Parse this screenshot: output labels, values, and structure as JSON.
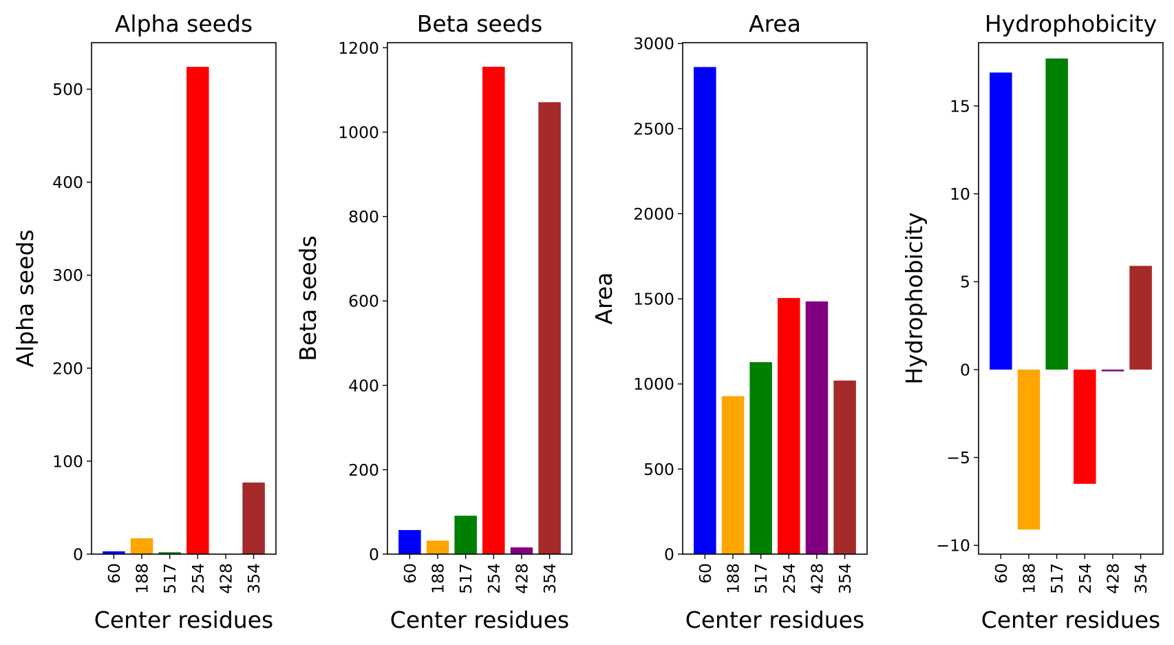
{
  "chart_data": [
    {
      "type": "bar",
      "title": "Alpha seeds",
      "xlabel": "Center residues",
      "ylabel": "Alpha seeds",
      "categories": [
        "60",
        "188",
        "517",
        "254",
        "428",
        "354"
      ],
      "values": [
        3,
        17,
        2,
        524,
        0,
        77
      ],
      "colors": [
        "#0000ff",
        "#ffa500",
        "#008000",
        "#ff0000",
        "#800080",
        "#a52a2a"
      ],
      "ylim": [
        0,
        550
      ],
      "yticks": [
        0,
        100,
        200,
        300,
        400,
        500
      ],
      "ytick_labels": [
        "0",
        "100",
        "200",
        "300",
        "400",
        "500"
      ]
    },
    {
      "type": "bar",
      "title": "Beta seeds",
      "xlabel": "Center residues",
      "ylabel": "Beta seeds",
      "categories": [
        "60",
        "188",
        "517",
        "254",
        "428",
        "354"
      ],
      "values": [
        57,
        32,
        91,
        1155,
        16,
        1071
      ],
      "colors": [
        "#0000ff",
        "#ffa500",
        "#008000",
        "#ff0000",
        "#800080",
        "#a52a2a"
      ],
      "ylim": [
        0,
        1212
      ],
      "yticks": [
        0,
        200,
        400,
        600,
        800,
        1000,
        1200
      ],
      "ytick_labels": [
        "0",
        "200",
        "400",
        "600",
        "800",
        "1000",
        "1200"
      ]
    },
    {
      "type": "bar",
      "title": "Area",
      "xlabel": "Center residues",
      "ylabel": "Area",
      "categories": [
        "60",
        "188",
        "517",
        "254",
        "428",
        "354"
      ],
      "values": [
        2862,
        928,
        1128,
        1505,
        1485,
        1020
      ],
      "colors": [
        "#0000ff",
        "#ffa500",
        "#008000",
        "#ff0000",
        "#800080",
        "#a52a2a"
      ],
      "ylim": [
        0,
        3005
      ],
      "yticks": [
        0,
        500,
        1000,
        1500,
        2000,
        2500,
        3000
      ],
      "ytick_labels": [
        "0",
        "500",
        "1000",
        "1500",
        "2000",
        "2500",
        "3000"
      ]
    },
    {
      "type": "bar",
      "title": "Hydrophobicity",
      "xlabel": "Center residues",
      "ylabel": "Hydrophobicity",
      "categories": [
        "60",
        "188",
        "517",
        "254",
        "428",
        "354"
      ],
      "values": [
        16.9,
        -9.1,
        17.7,
        -6.5,
        -0.1,
        5.9
      ],
      "colors": [
        "#0000ff",
        "#ffa500",
        "#008000",
        "#ff0000",
        "#800080",
        "#a52a2a"
      ],
      "ylim": [
        -10.5,
        18.6
      ],
      "yticks": [
        -10,
        -5,
        0,
        5,
        10,
        15
      ],
      "ytick_labels": [
        "−10",
        "−5",
        "0",
        "5",
        "10",
        "15"
      ]
    }
  ]
}
